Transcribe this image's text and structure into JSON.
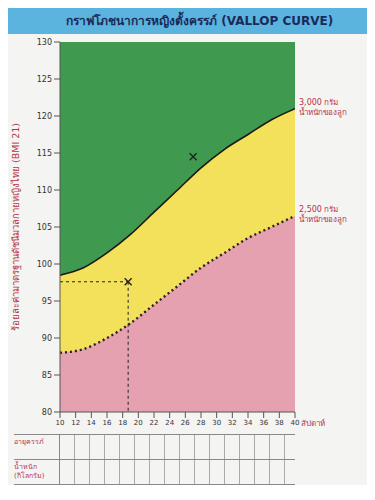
{
  "chart_data": {
    "type": "area",
    "title": "กราฟโภชนาการหญิงตั้งครรภ์ (VALLOP CURVE)",
    "y_label": "ร้อยละค่ามาตรฐานดัชนีมวลกายหญิงไทย (BMI 21)",
    "x_label": "สัปดาห์",
    "x": [
      10,
      13,
      16,
      19,
      22,
      25,
      28,
      31,
      34,
      37,
      40
    ],
    "series": [
      {
        "name": "3,000 กรัม น้ำหนักของลูก",
        "color": "#f3e15b",
        "line_style": "solid",
        "values": [
          98.5,
          99.5,
          101.5,
          104,
          107,
          110,
          113,
          115.5,
          117.5,
          119.5,
          121
        ]
      },
      {
        "name": "2,500 กรัม น้ำหนักของลูก",
        "color": "#e6a1b0",
        "line_style": "dotted",
        "values": [
          88,
          88.5,
          90,
          92,
          94.5,
          97,
          99.5,
          101.5,
          103.5,
          105,
          106.5
        ]
      }
    ],
    "points": {
      "type": "scatter",
      "marker": "x",
      "x": [
        18.7,
        27
      ],
      "values": [
        97.6,
        114.5
      ]
    },
    "rows": [
      "อายุครรภ์",
      "น้ำหนัก (กิโลกรัม)"
    ],
    "xlim": [
      10,
      40
    ],
    "xticks": [
      10,
      12,
      14,
      16,
      18,
      20,
      22,
      24,
      26,
      28,
      30,
      32,
      34,
      36,
      38,
      40
    ],
    "ylim": [
      80,
      130
    ],
    "yticks": [
      80,
      85,
      90,
      95,
      100,
      105,
      110,
      115,
      120,
      125,
      130
    ],
    "grid": true
  }
}
